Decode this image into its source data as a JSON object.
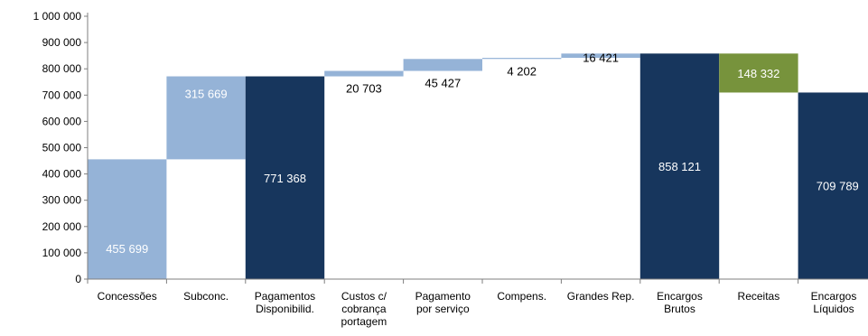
{
  "chart_data": {
    "type": "bar",
    "subtype": "waterfall",
    "title": "",
    "xlabel": "",
    "ylabel": "",
    "ylim": [
      0,
      1000000
    ],
    "yticks": [
      0,
      100000,
      200000,
      300000,
      400000,
      500000,
      600000,
      700000,
      800000,
      900000,
      1000000
    ],
    "ytick_labels": [
      "0",
      "100 000",
      "200 000",
      "300 000",
      "400 000",
      "500 000",
      "600 000",
      "700 000",
      "800 000",
      "900 000",
      "1 000 000"
    ],
    "grid": false,
    "legend": "none",
    "categories": [
      [
        "Concessões"
      ],
      [
        "Subconc."
      ],
      [
        "Pagamentos",
        "Disponibilid."
      ],
      [
        "Custos c/",
        "cobrança",
        "portagem"
      ],
      [
        "Pagamento",
        "por serviço"
      ],
      [
        "Compens."
      ],
      [
        "Grandes Rep."
      ],
      [
        "Encargos",
        "Brutos"
      ],
      [
        "Receitas"
      ],
      [
        "Encargos",
        "Líquidos"
      ]
    ],
    "bars": [
      {
        "base": 0,
        "value": 455699,
        "kind": "step",
        "label": "455 699",
        "label_color": "#ffffff",
        "label_pos": "inside-low"
      },
      {
        "base": 455699,
        "value": 315669,
        "kind": "step",
        "label": "315 669",
        "label_color": "#ffffff",
        "label_pos": "inside-top"
      },
      {
        "base": 0,
        "value": 771368,
        "kind": "total",
        "label": "771 368",
        "label_color": "#ffffff",
        "label_pos": "inside-mid"
      },
      {
        "base": 771368,
        "value": 20703,
        "kind": "step",
        "label": "20 703",
        "label_color": "#000000",
        "label_pos": "below"
      },
      {
        "base": 792071,
        "value": 45427,
        "kind": "step",
        "label": "45 427",
        "label_color": "#000000",
        "label_pos": "below"
      },
      {
        "base": 837498,
        "value": 4202,
        "kind": "step",
        "label": "4 202",
        "label_color": "#000000",
        "label_pos": "below"
      },
      {
        "base": 841700,
        "value": 16421,
        "kind": "step",
        "label": "16 421",
        "label_color": "#000000",
        "label_pos": "at-bar"
      },
      {
        "base": 0,
        "value": 858121,
        "kind": "total",
        "label": "858 121",
        "label_color": "#ffffff",
        "label_pos": "inside-mid"
      },
      {
        "base": 709789,
        "value": 148332,
        "kind": "minus",
        "label": "148 332",
        "label_color": "#ffffff",
        "label_pos": "inside-mid"
      },
      {
        "base": 0,
        "value": 709789,
        "kind": "total",
        "label": "709 789",
        "label_color": "#ffffff",
        "label_pos": "inside-mid"
      }
    ],
    "colors": {
      "step": "#95b3d7",
      "total": "#17365d",
      "minus": "#77933c",
      "axis": "#7f7f7f"
    }
  }
}
